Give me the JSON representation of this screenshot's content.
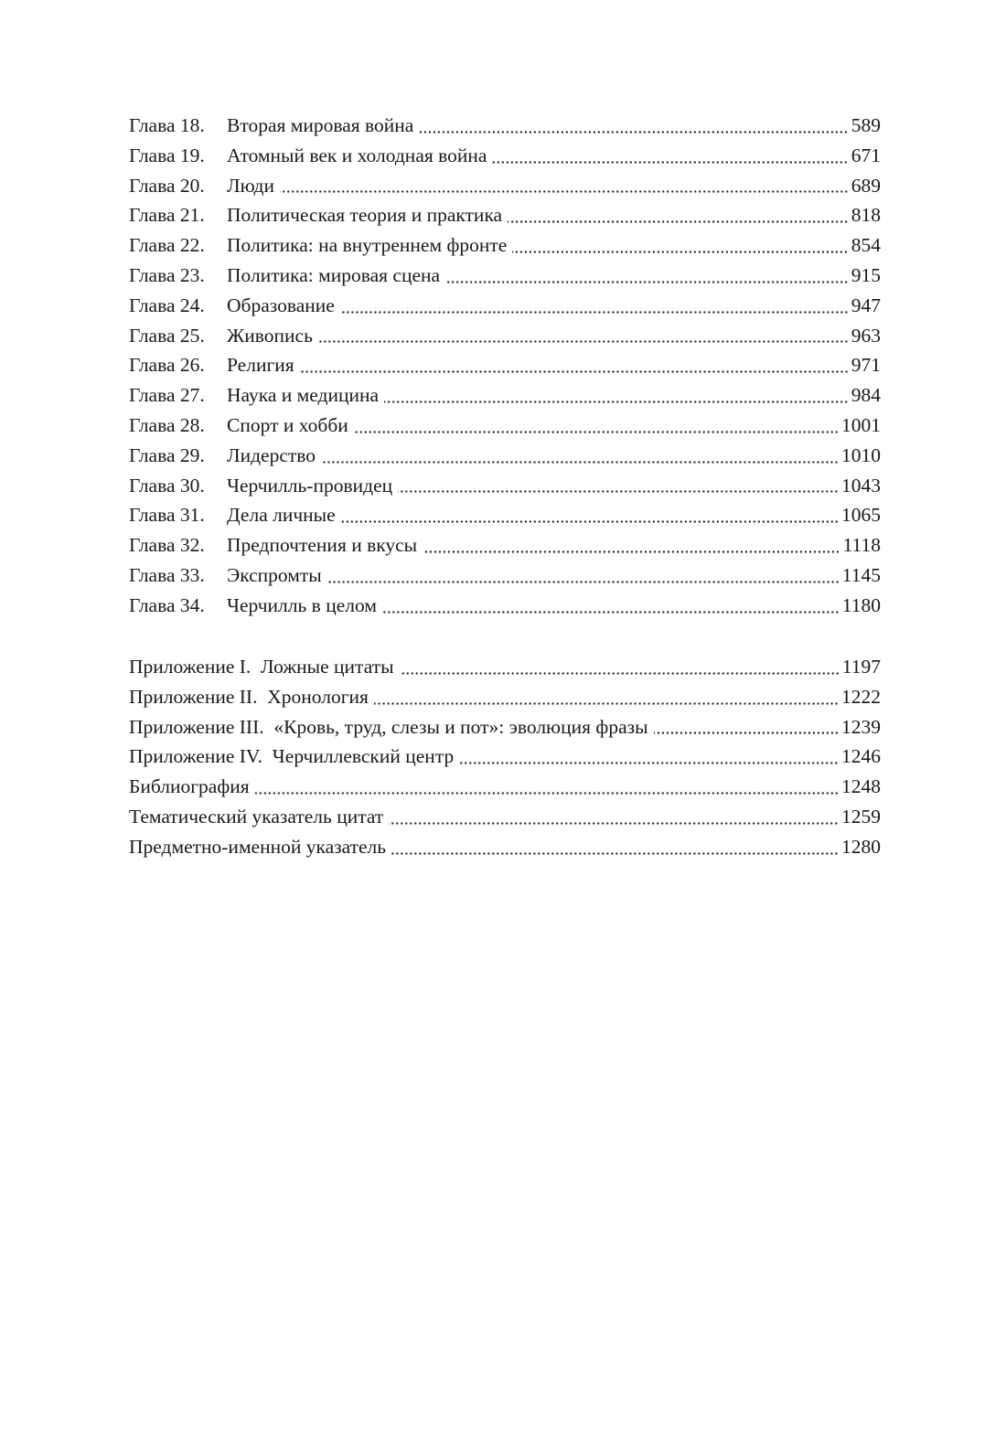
{
  "chapters": [
    {
      "label": "Глава 18.",
      "title": "Вторая мировая война",
      "page": "589"
    },
    {
      "label": "Глава 19.",
      "title": "Атомный век и холодная война",
      "page": "671"
    },
    {
      "label": "Глава 20.",
      "title": "Люди",
      "page": "689"
    },
    {
      "label": "Глава 21.",
      "title": "Политическая теория и практика",
      "page": "818"
    },
    {
      "label": "Глава 22.",
      "title": "Политика: на внутреннем фронте",
      "page": "854"
    },
    {
      "label": "Глава 23.",
      "title": "Политика: мировая сцена",
      "page": "915"
    },
    {
      "label": "Глава 24.",
      "title": "Образование",
      "page": "947"
    },
    {
      "label": "Глава 25.",
      "title": "Живопись",
      "page": "963"
    },
    {
      "label": "Глава 26.",
      "title": "Религия",
      "page": "971"
    },
    {
      "label": "Глава 27.",
      "title": "Наука и медицина",
      "page": "984"
    },
    {
      "label": "Глава 28.",
      "title": "Спорт и хобби",
      "page": "1001"
    },
    {
      "label": "Глава 29.",
      "title": "Лидерство",
      "page": "1010"
    },
    {
      "label": "Глава 30.",
      "title": "Черчилль-провидец",
      "page": "1043"
    },
    {
      "label": "Глава 31.",
      "title": "Дела личные",
      "page": "1065"
    },
    {
      "label": "Глава 32.",
      "title": "Предпочтения и вкусы",
      "page": "1118"
    },
    {
      "label": "Глава 33.",
      "title": "Экспромты",
      "page": "1145"
    },
    {
      "label": "Глава 34.",
      "title": "Черчилль в целом",
      "page": "1180"
    }
  ],
  "appendix": [
    {
      "title": "Приложение I.  Ложные цитаты",
      "page": "1197"
    },
    {
      "title": "Приложение II.  Хронология",
      "page": "1222"
    },
    {
      "title": "Приложение III.  «Кровь, труд, слезы и пот»: эволюция фразы",
      "page": "1239"
    },
    {
      "title": "Приложение IV.  Черчиллевский центр",
      "page": "1246"
    },
    {
      "title": "Библиография",
      "page": "1248"
    },
    {
      "title": "Тематический указатель цитат",
      "page": "1259"
    },
    {
      "title": "Предметно-именной указатель",
      "page": "1280"
    }
  ]
}
